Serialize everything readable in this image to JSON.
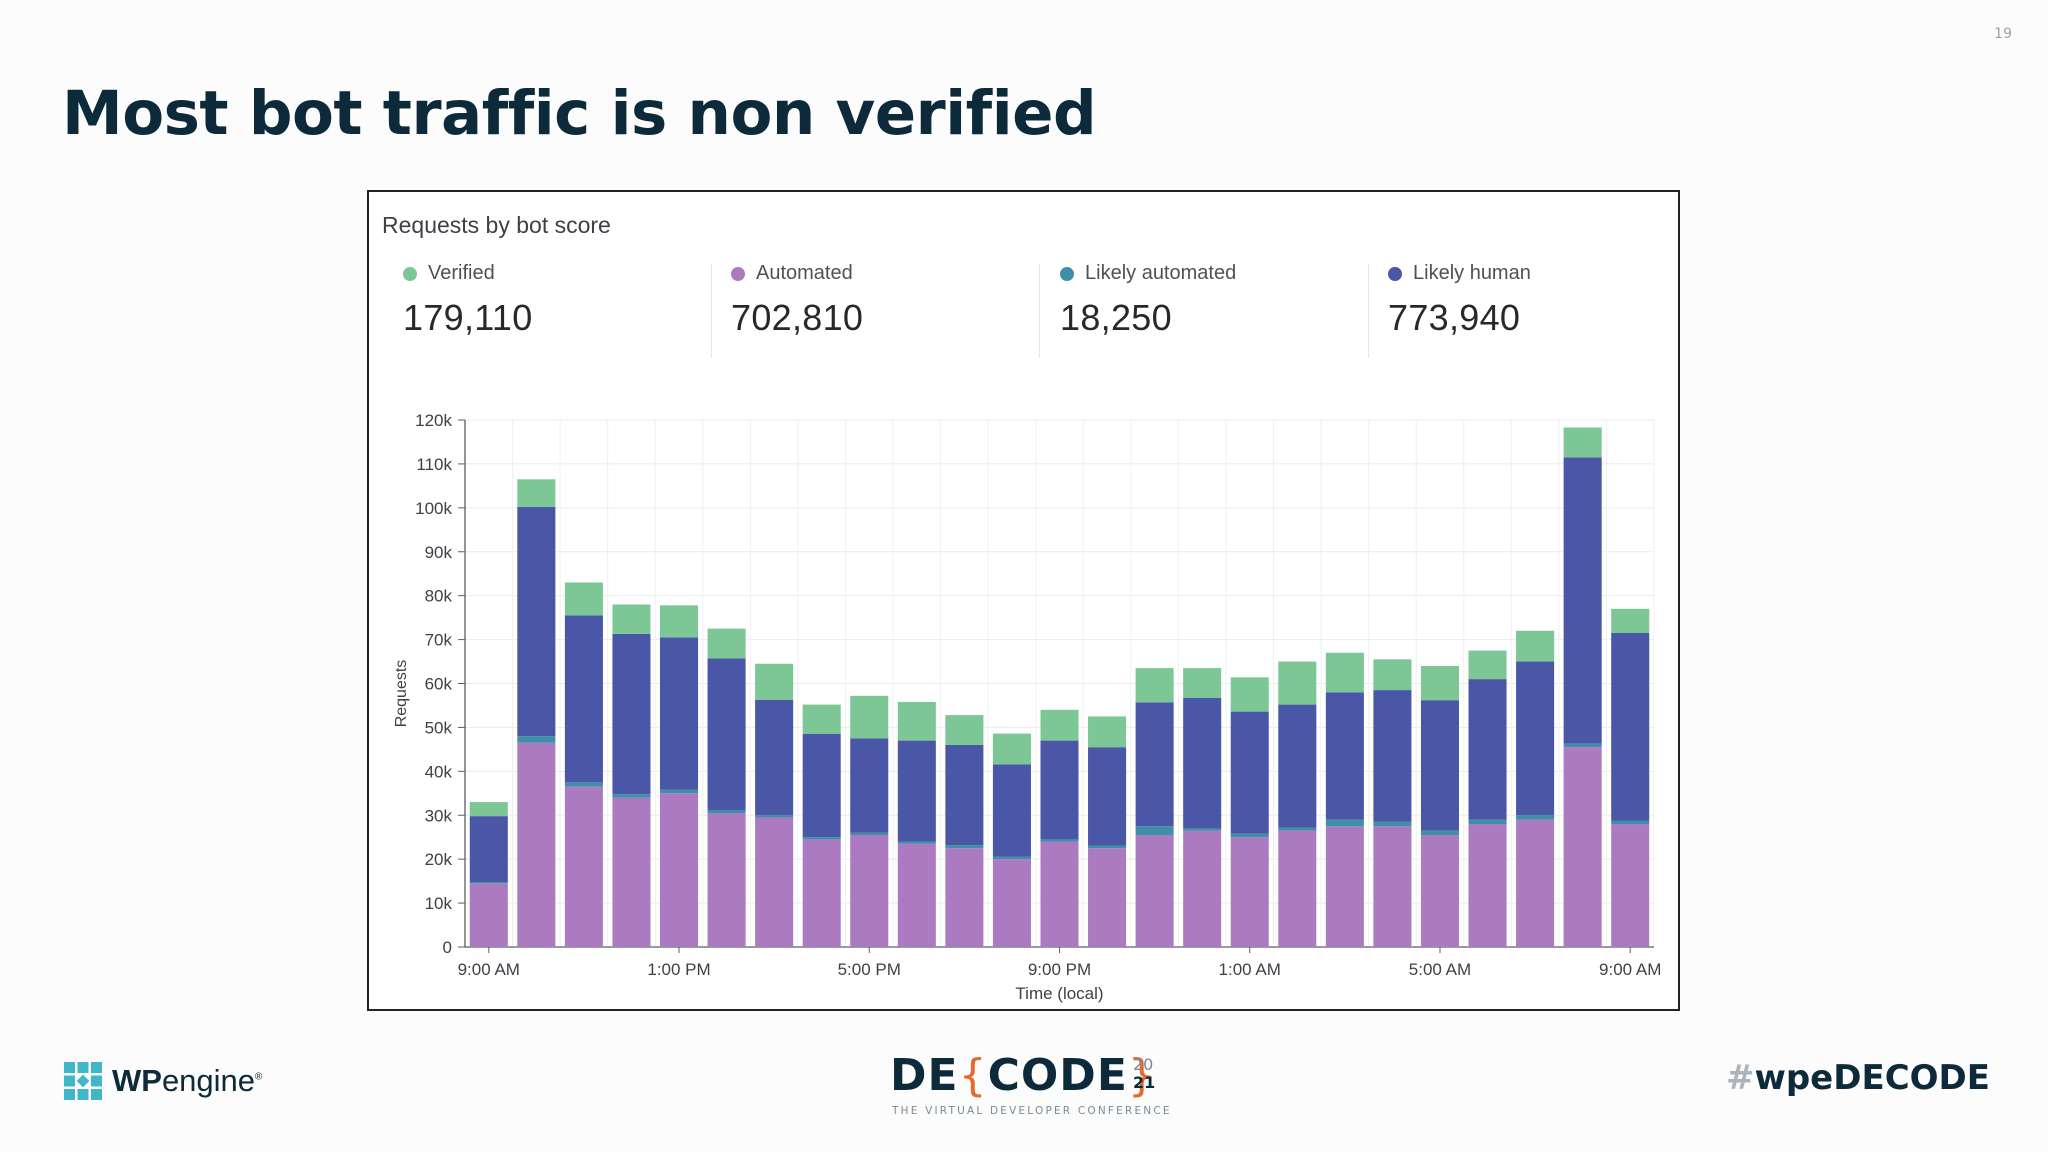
{
  "slide": {
    "number": "19",
    "title": "Most bot traffic is non verified"
  },
  "card": {
    "title": "Requests by bot score",
    "stats": [
      {
        "label": "Verified",
        "value": "179,110",
        "color": "#7cc795"
      },
      {
        "label": "Automated",
        "value": "702,810",
        "color": "#ab7ac0"
      },
      {
        "label": "Likely automated",
        "value": "18,250",
        "color": "#3f8fa8"
      },
      {
        "label": "Likely human",
        "value": "773,940",
        "color": "#4a56a6"
      }
    ]
  },
  "chart_data": {
    "type": "bar",
    "stacked": true,
    "xlabel": "Time (local)",
    "ylabel": "Requests",
    "ylim": [
      0,
      120000
    ],
    "yticks": [
      "0",
      "10k",
      "20k",
      "30k",
      "40k",
      "50k",
      "60k",
      "70k",
      "80k",
      "90k",
      "100k",
      "110k",
      "120k"
    ],
    "xtick_labels": [
      "9:00 AM",
      "1:00 PM",
      "5:00 PM",
      "9:00 PM",
      "1:00 AM",
      "5:00 AM",
      "9:00 AM"
    ],
    "xtick_every": 4,
    "grid": true,
    "series": [
      {
        "name": "Automated",
        "color": "#ab7ac0",
        "values": [
          14500,
          46500,
          36500,
          34000,
          35000,
          30500,
          29500,
          24500,
          25500,
          23500,
          22500,
          20000,
          24000,
          22500,
          25500,
          26500,
          25000,
          26500,
          27500,
          27500,
          25500,
          28000,
          29000,
          45500,
          28000
        ]
      },
      {
        "name": "Likely automated",
        "color": "#3f8fa8",
        "values": [
          300,
          1500,
          1000,
          800,
          800,
          700,
          500,
          500,
          500,
          500,
          700,
          600,
          500,
          600,
          2000,
          500,
          800,
          700,
          1500,
          1000,
          1000,
          1000,
          1000,
          800,
          800
        ]
      },
      {
        "name": "Likely human",
        "color": "#4a56a6",
        "values": [
          15000,
          52200,
          38000,
          36500,
          34700,
          34500,
          26300,
          23500,
          21500,
          23000,
          22800,
          21000,
          22500,
          22400,
          28200,
          29700,
          27800,
          28000,
          29000,
          30000,
          29700,
          32000,
          35000,
          65200,
          42700
        ]
      },
      {
        "name": "Verified",
        "color": "#7cc795",
        "values": [
          3200,
          6300,
          7500,
          6700,
          7300,
          6800,
          8200,
          6700,
          9700,
          8800,
          6800,
          7000,
          7000,
          7000,
          7800,
          6800,
          7800,
          9800,
          9000,
          7000,
          7800,
          6500,
          7000,
          6800,
          5500
        ]
      }
    ]
  },
  "footer": {
    "brand_bold": "WP",
    "brand_rest": "engine",
    "registered": "®",
    "decode_word_1": "DE",
    "decode_brace_open": "{",
    "decode_word_2": "CODE",
    "decode_brace_close": "}",
    "decode_year_1": "20",
    "decode_year_2": "21",
    "decode_tagline": "THE VIRTUAL DEVELOPER CONFERENCE",
    "hashtag_symbol": "#",
    "hashtag_text": "wpeDECODE"
  }
}
